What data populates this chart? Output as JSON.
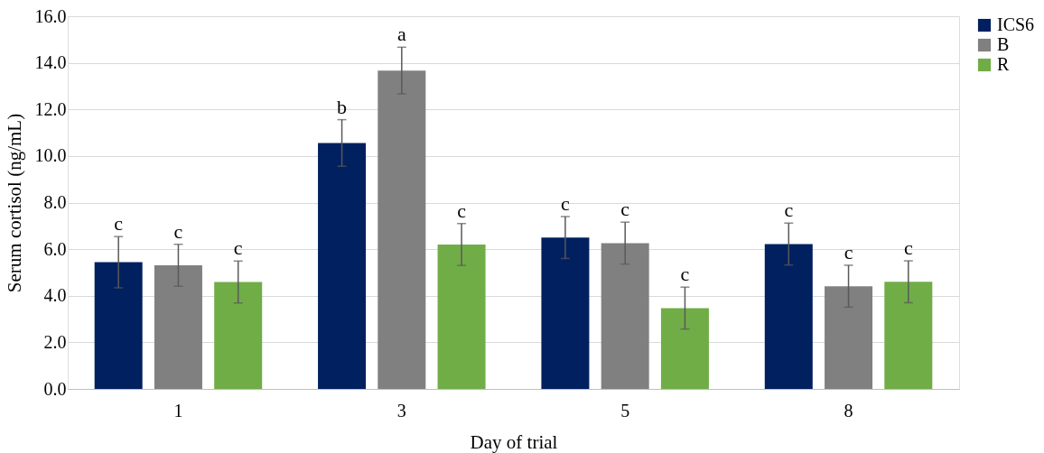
{
  "chart_data": {
    "type": "bar",
    "xlabel": "Day of trial",
    "ylabel": "Serum cortisol (ng/mL)",
    "categories": [
      "1",
      "3",
      "5",
      "8"
    ],
    "series": [
      {
        "name": "ICS6",
        "color": "#002060",
        "values": [
          5.44,
          10.56,
          6.5,
          6.22
        ],
        "errors": [
          1.1,
          1.0,
          0.9,
          0.9
        ],
        "value_labels": [
          "c",
          "b",
          "c",
          "c"
        ]
      },
      {
        "name": "B",
        "color": "#808080",
        "values": [
          5.31,
          13.67,
          6.26,
          4.41
        ],
        "errors": [
          0.9,
          1.0,
          0.9,
          0.9
        ],
        "value_labels": [
          "c",
          "a",
          "c",
          "c"
        ]
      },
      {
        "name": "R",
        "color": "#70ad47",
        "values": [
          4.59,
          6.2,
          3.47,
          4.6
        ],
        "errors": [
          0.9,
          0.9,
          0.9,
          0.9
        ],
        "value_labels": [
          "c",
          "c",
          "c",
          "c"
        ]
      }
    ],
    "ylim": [
      0,
      16
    ],
    "yticks": [
      {
        "value": 0,
        "label": "0.0"
      },
      {
        "value": 2,
        "label": "2.0"
      },
      {
        "value": 4,
        "label": "4.0"
      },
      {
        "value": 6,
        "label": "6.0"
      },
      {
        "value": 8,
        "label": "8.0"
      },
      {
        "value": 10,
        "label": "10.0"
      },
      {
        "value": 12,
        "label": "12.0"
      },
      {
        "value": 14,
        "label": "14.0"
      },
      {
        "value": 16,
        "label": "16.0"
      }
    ],
    "grid": "y",
    "legend": "right"
  }
}
